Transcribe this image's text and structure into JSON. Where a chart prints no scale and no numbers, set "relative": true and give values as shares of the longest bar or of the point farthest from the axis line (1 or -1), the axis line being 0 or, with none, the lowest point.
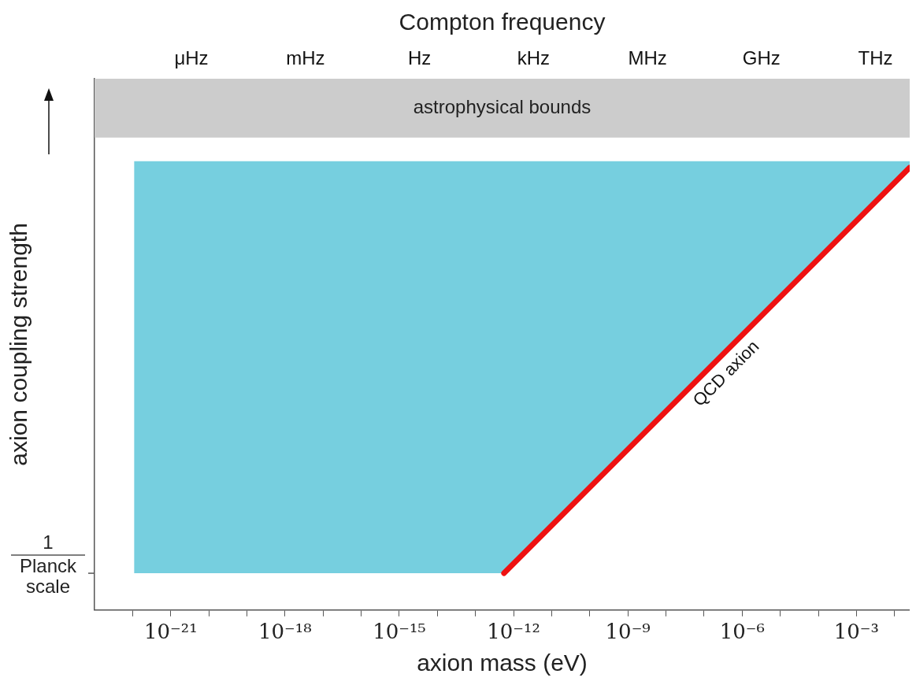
{
  "chart_data": {
    "type": "area",
    "relative": true,
    "log": "x",
    "grid": false,
    "legend": false,
    "marker": "none",
    "xlabel": "axion mass (eV)",
    "ylabel": "axion coupling strength",
    "x2label": "Compton frequency",
    "xlim": [
      1e-23,
      0.025
    ],
    "xticks": [
      {
        "value": 1e-22,
        "label": null
      },
      {
        "value": 1e-21,
        "label": "10⁻²¹"
      },
      {
        "value": 1e-20,
        "label": null
      },
      {
        "value": 1e-19,
        "label": null
      },
      {
        "value": 1e-18,
        "label": "10⁻¹⁸"
      },
      {
        "value": 1e-17,
        "label": null
      },
      {
        "value": 1e-16,
        "label": null
      },
      {
        "value": 1e-15,
        "label": "10⁻¹⁵"
      },
      {
        "value": 1e-14,
        "label": null
      },
      {
        "value": 1e-13,
        "label": null
      },
      {
        "value": 1e-12,
        "label": "10⁻¹²"
      },
      {
        "value": 1e-11,
        "label": null
      },
      {
        "value": 1e-10,
        "label": null
      },
      {
        "value": 1e-09,
        "label": "10⁻⁹"
      },
      {
        "value": 1e-08,
        "label": null
      },
      {
        "value": 1e-07,
        "label": null
      },
      {
        "value": 1e-06,
        "label": "10⁻⁶"
      },
      {
        "value": 1e-05,
        "label": null
      },
      {
        "value": 0.0001,
        "label": null
      },
      {
        "value": 0.001,
        "label": "10⁻³"
      },
      {
        "value": 0.01,
        "label": null
      }
    ],
    "annotations": [
      "μHz",
      "mHz",
      "Hz",
      "kHz",
      "MHz",
      "GHz",
      "THz"
    ],
    "series": [
      {
        "color": "#76cfdf",
        "x": [
          1.1e-22,
          5.6e-13,
          0.025,
          0.025,
          1.1e-22
        ],
        "values": [
          0.082,
          0.082,
          0.986,
          1,
          1
        ]
      },
      {
        "type": "line",
        "name": "QCD axion",
        "color": "#ee1111",
        "x": [
          5.6e-13,
          0.025
        ],
        "values": [
          0.082,
          0.986
        ]
      }
    ],
    "bands": [
      {
        "axis": "y",
        "from": 1.053,
        "to": 1.184,
        "label": "astrophysical bounds",
        "color": "#cccccc"
      }
    ],
    "ref_lines": [
      {
        "axis": "y",
        "value": 0.082,
        "label": "1 Planck scale"
      }
    ]
  }
}
